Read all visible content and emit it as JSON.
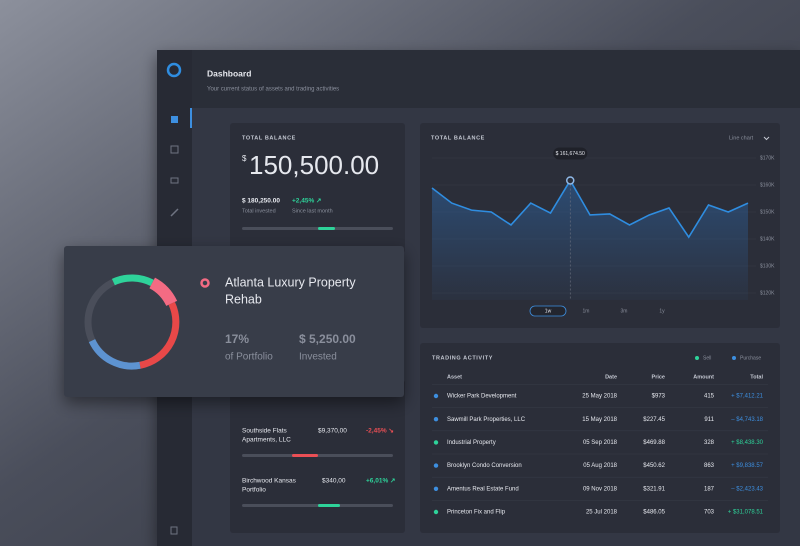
{
  "header": {
    "title": "Dashboard",
    "subtitle": "Your current status of assets and trading activities"
  },
  "balance_card": {
    "title": "TOTAL BALANCE",
    "currency": "$",
    "amount": "150,500.00",
    "invested": "$ 180,250.00",
    "invested_label": "Total invested",
    "change": "+2,45% ↗",
    "change_label": "Since last month"
  },
  "chart_data": {
    "type": "line",
    "title": "TOTAL BALANCE",
    "dropdown": "Line chart",
    "color": "#2f8de0",
    "values": [
      158.9,
      153.3,
      150.7,
      150,
      145.2,
      153.3,
      149.6,
      161.6745,
      148.9,
      149.3,
      145.2,
      148.9,
      151.5,
      140.7,
      152.6,
      150,
      153.3
    ],
    "value_labels": [
      null,
      null,
      null,
      null,
      null,
      null,
      null,
      "$ 161,674.50",
      null,
      null,
      null,
      null,
      null,
      null,
      null,
      null,
      null
    ],
    "ylim": [
      120,
      170
    ],
    "yticks": [
      {
        "value": 170,
        "label": "$170K"
      },
      {
        "value": 160,
        "label": "$160K"
      },
      {
        "value": 150,
        "label": "$150K"
      },
      {
        "value": 140,
        "label": "$140K"
      },
      {
        "value": 130,
        "label": "$130K"
      },
      {
        "value": 120,
        "label": "$120K"
      }
    ],
    "ranges": [
      "1w",
      "1m",
      "3m",
      "1y"
    ]
  },
  "trading": {
    "title": "TRADING ACTIVITY",
    "legend": [
      {
        "name": "Sell",
        "color": "#2ed39a"
      },
      {
        "name": "Purchase",
        "color": "#3d8fe0"
      }
    ],
    "columns": [
      "Asset",
      "Date",
      "Price",
      "Amount",
      "Total"
    ],
    "rows": [
      {
        "asset": "Wicker Park Development",
        "date": "25 May 2018",
        "price": "$973",
        "amount": "415",
        "total": "+ $7,412.21",
        "color": "#3d8fe0"
      },
      {
        "asset": "Sawmill Park Properties, LLC",
        "date": "15 May 2018",
        "price": "$227.45",
        "amount": "911",
        "total": "– $4,743.18",
        "color": "#3d8fe0"
      },
      {
        "asset": "Industrial Property",
        "date": "05 Sep 2018",
        "price": "$469.88",
        "amount": "328",
        "total": "+ $8,438.30",
        "color": "#2ed39a"
      },
      {
        "asset": "Brooklyn Condo Conversion",
        "date": "05 Aug 2018",
        "price": "$450.62",
        "amount": "863",
        "total": "+ $9,838.57",
        "color": "#3d8fe0"
      },
      {
        "asset": "Amentus Real Estate Fund",
        "date": "09 Nov 2018",
        "price": "$321.91",
        "amount": "187",
        "total": "– $2,423.43",
        "color": "#3d8fe0"
      },
      {
        "asset": "Princeton Fix and Flip",
        "date": "25 Jul 2018",
        "price": "$486.05",
        "amount": "703",
        "total": "+ $31,078.51",
        "color": "#2ed39a"
      }
    ]
  },
  "holdings": [
    {
      "name_line1": "Southside Flats",
      "name_line2": "Apartments, LLC",
      "amount": "$9,370,00",
      "change": "-2,45% ↘"
    },
    {
      "name_line1": "Birchwood Kansas",
      "name_line2": "Portfolio",
      "amount": "$340,00",
      "change": "+6,01% ↗"
    }
  ],
  "property_card": {
    "title_line1": "Atlanta Luxury Property",
    "title_line2": "Rehab",
    "share": "17%",
    "share_label": "of Portfolio",
    "invested": "$ 5,250.00",
    "invested_label": "Invested"
  }
}
